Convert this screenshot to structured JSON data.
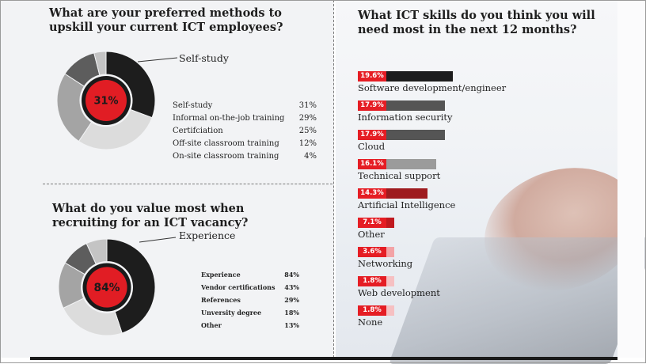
{
  "chart_data": [
    {
      "type": "pie",
      "title": "What are your preferred methods to upskill your current ICT employees?",
      "highlight_label": "Self-study",
      "center_value": "31%",
      "categories": [
        "Self-study",
        "Informal on-the-job training",
        "Certifciation",
        "Off-site classroom training",
        "On-site classroom training"
      ],
      "values": [
        31,
        29,
        25,
        12,
        4
      ],
      "value_labels": [
        "31%",
        "29%",
        "25%",
        "12%",
        "4%"
      ],
      "colors": [
        "#1d1d1d",
        "#dcdcdc",
        "#a4a4a4",
        "#5d5d5d",
        "#c4c4c4"
      ]
    },
    {
      "type": "pie",
      "title": "What do you value most when recruiting for an ICT vacancy?",
      "highlight_label": "Experience",
      "center_value": "84%",
      "categories": [
        "Experience",
        "Vendor certifications",
        "References",
        "Unversity degree",
        "Other"
      ],
      "values": [
        84,
        43,
        29,
        18,
        13
      ],
      "value_labels": [
        "84%",
        "43%",
        "29%",
        "18%",
        "13%"
      ],
      "colors": [
        "#1d1d1d",
        "#dcdcdc",
        "#a4a4a4",
        "#5d5d5d",
        "#c4c4c4"
      ]
    },
    {
      "type": "bar",
      "title": "What ICT skills do you think you will need most in the next 12 months?",
      "categories": [
        "Software development/engineer",
        "Information security",
        "Cloud",
        "Technical support",
        "Artificial Intelligence",
        "Other",
        "Networking",
        "Web development",
        "None"
      ],
      "values": [
        19.6,
        17.9,
        17.9,
        16.1,
        14.3,
        7.1,
        3.6,
        1.8,
        1.8
      ],
      "value_labels": [
        "19.6%",
        "17.9%",
        "17.9%",
        "16.1%",
        "14.3%",
        "7.1%",
        "3.6%",
        "1.8%",
        "1.8%"
      ],
      "colors": [
        "#1d1d1d",
        "#555555",
        "#555555",
        "#9b9b9b",
        "#9e1b1f",
        "#c0191f",
        "#f3a3a6",
        "#f6c0c2",
        "#f6c0c2"
      ]
    }
  ]
}
